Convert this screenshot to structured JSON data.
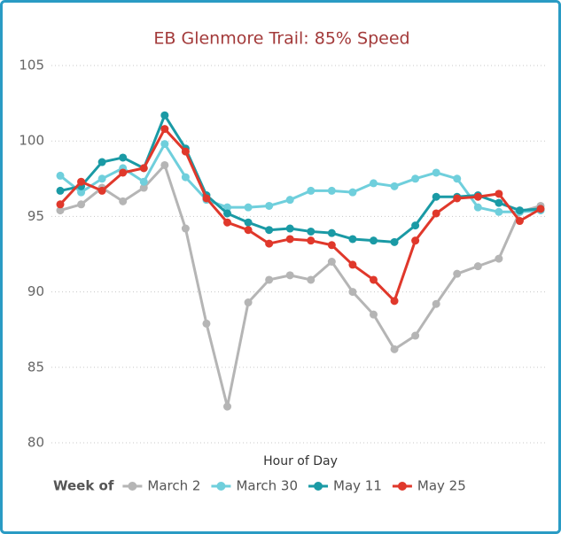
{
  "chart_data": {
    "type": "line",
    "title": "EB Glenmore Trail: 85% Speed",
    "x_label": "Hour of Day",
    "legend_title": "Week of",
    "legend": "bottom",
    "grid": true,
    "categories": [
      null,
      null,
      null,
      null,
      null,
      null,
      null,
      null,
      null,
      null,
      null,
      null,
      null,
      null,
      null,
      null,
      null,
      null,
      null,
      null,
      null,
      null,
      null,
      null
    ],
    "ylim": [
      80,
      105
    ],
    "yticks": [
      80,
      85,
      90,
      95,
      100,
      105
    ],
    "series": [
      {
        "name": "March 2",
        "color": "#b5b5b5",
        "values": [
          95.4,
          95.8,
          96.9,
          96.0,
          96.9,
          98.4,
          94.2,
          87.9,
          82.4,
          89.3,
          90.8,
          91.1,
          90.8,
          92.0,
          90.0,
          88.5,
          86.2,
          87.1,
          89.2,
          91.2,
          91.7,
          92.2,
          95.3,
          95.7
        ]
      },
      {
        "name": "March 30",
        "color": "#6fcfdc",
        "values": [
          97.7,
          96.6,
          97.5,
          98.2,
          97.3,
          99.8,
          97.6,
          96.1,
          95.6,
          95.6,
          95.7,
          96.1,
          96.7,
          96.7,
          96.6,
          97.2,
          97.0,
          97.5,
          97.9,
          97.5,
          95.6,
          95.3,
          95.3,
          95.4
        ]
      },
      {
        "name": "May 11",
        "color": "#1a9aa5",
        "values": [
          96.7,
          97.0,
          98.6,
          98.9,
          98.2,
          101.7,
          99.5,
          96.4,
          95.2,
          94.6,
          94.1,
          94.2,
          94.0,
          93.9,
          93.5,
          93.4,
          93.3,
          94.4,
          96.3,
          96.3,
          96.4,
          95.9,
          95.4,
          95.5
        ]
      },
      {
        "name": "May 25",
        "color": "#e0382b",
        "values": [
          95.8,
          97.3,
          96.7,
          97.9,
          98.2,
          100.8,
          99.3,
          96.2,
          94.6,
          94.1,
          93.2,
          93.5,
          93.4,
          93.1,
          91.8,
          90.8,
          89.4,
          93.4,
          95.2,
          96.2,
          96.3,
          96.5,
          94.7,
          95.5
        ]
      }
    ]
  }
}
